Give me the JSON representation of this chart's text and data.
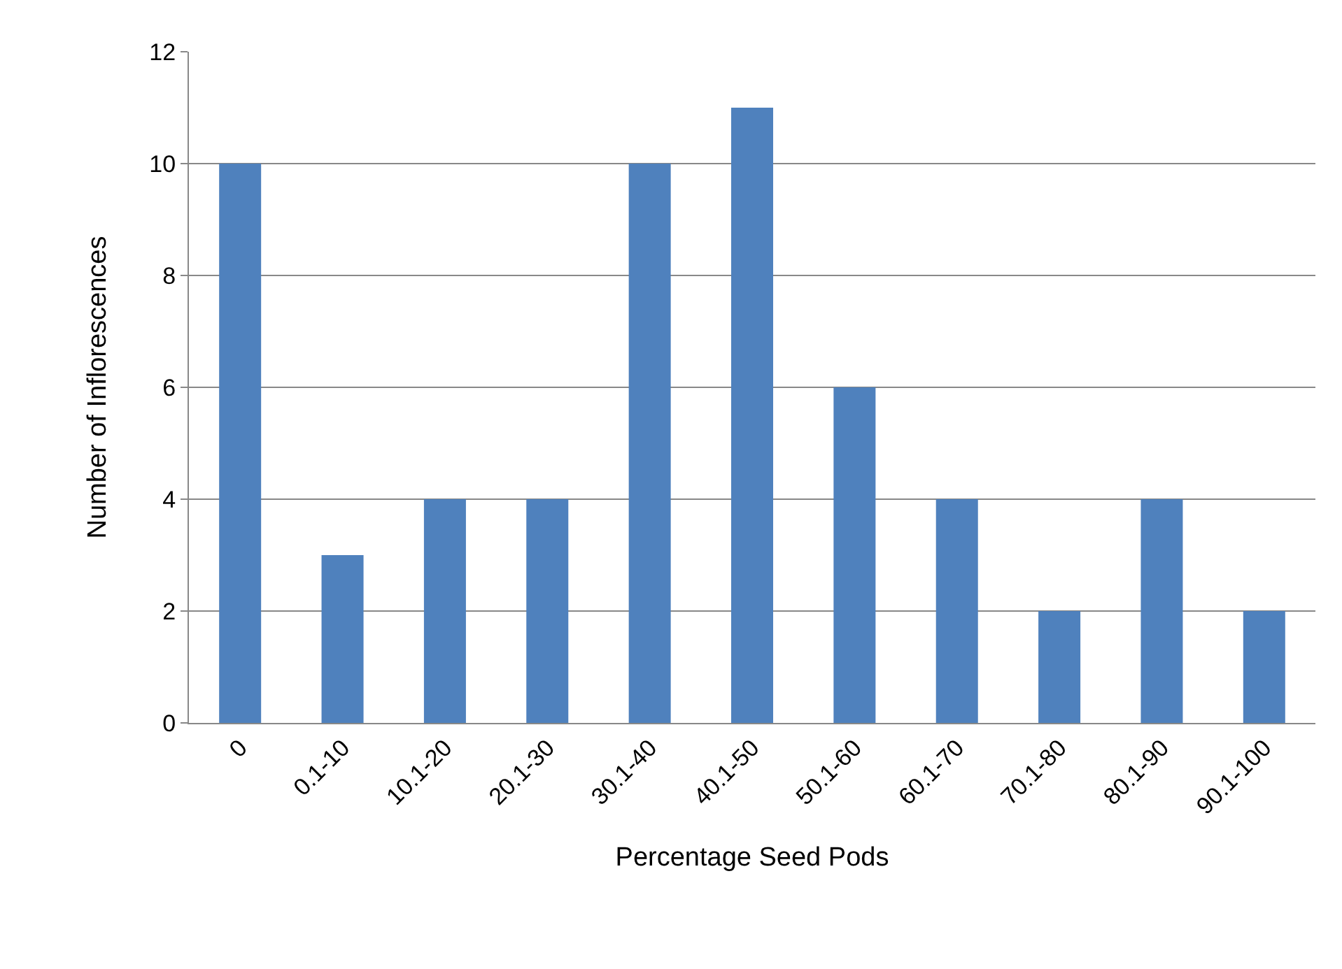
{
  "chart_data": {
    "type": "bar",
    "categories": [
      "0",
      "0.1-10",
      "10.1-20",
      "20.1-30",
      "30.1-40",
      "40.1-50",
      "50.1-60",
      "60.1-70",
      "70.1-80",
      "80.1-90",
      "90.1-100"
    ],
    "values": [
      10,
      3,
      4,
      4,
      10,
      11,
      6,
      4,
      2,
      4,
      2
    ],
    "color": "#4f81bd",
    "xlabel": "Percentage Seed Pods",
    "ylabel": "Number of Inflorescences",
    "ylim": [
      0,
      12
    ],
    "yticks": [
      0,
      2,
      4,
      6,
      8,
      10,
      12
    ],
    "grid": "y"
  }
}
